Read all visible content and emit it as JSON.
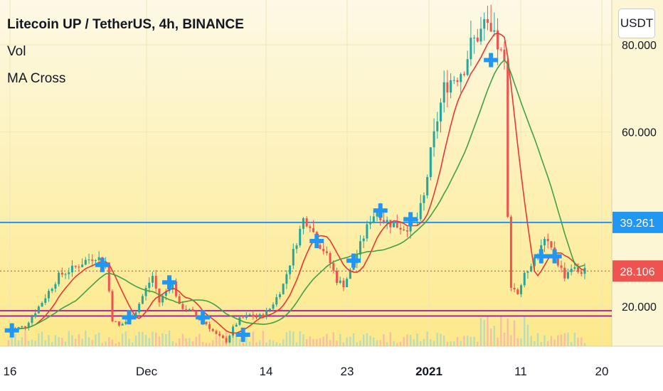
{
  "legend": {
    "title": "Litecoin UP / TetherUS, 4h, BINANCE",
    "vol": "Vol",
    "ma": "MA Cross"
  },
  "currency_button": "USDT",
  "colors": {
    "background_top": "#fdf9e6",
    "background_bottom": "#fde98a",
    "up": "#26a69a",
    "down": "#ef5350",
    "ma_fast": "#e53935",
    "ma_slow": "#43a047",
    "cross_marker": "#2196f3",
    "h_line_blue": "#2196f3",
    "h_line_purple": "#9c27b0",
    "last_price": "#ef5350"
  },
  "chart_data": {
    "type": "candlestick",
    "symbol": "Litecoin UP / TetherUS",
    "interval": "4h",
    "exchange": "BINANCE",
    "x_ticks": [
      "16",
      "Dec",
      "14",
      "23",
      "2021",
      "11",
      "20"
    ],
    "y_ticks": [
      "20.000",
      "60.000",
      "80.000"
    ],
    "ylim": [
      10,
      90
    ],
    "horizontal_lines": [
      {
        "price": 39.261,
        "label": "39.261",
        "color": "#2196f3"
      },
      {
        "price": 17.8,
        "color": "#9c27b0"
      },
      {
        "price": 19.0,
        "color": "#9c27b0"
      }
    ],
    "last_price": {
      "value": 28.106,
      "label": "28.106"
    },
    "close_path": [
      [
        0,
        14.5
      ],
      [
        5,
        15.5
      ],
      [
        10,
        21
      ],
      [
        15,
        27
      ],
      [
        20,
        29
      ],
      [
        23,
        30.5
      ],
      [
        26,
        31.5
      ],
      [
        29,
        30
      ],
      [
        31,
        17
      ],
      [
        33,
        15.5
      ],
      [
        36,
        17
      ],
      [
        38,
        19
      ],
      [
        41,
        24
      ],
      [
        43,
        27
      ],
      [
        45,
        21
      ],
      [
        47,
        23.5
      ],
      [
        49,
        25.5
      ],
      [
        51,
        20
      ],
      [
        53,
        19.5
      ],
      [
        55,
        18.5
      ],
      [
        57,
        17
      ],
      [
        59,
        16
      ],
      [
        62,
        13.5
      ],
      [
        65,
        12
      ],
      [
        67,
        15
      ],
      [
        69,
        17
      ],
      [
        72,
        18
      ],
      [
        74,
        17.5
      ],
      [
        76,
        18
      ],
      [
        78,
        19.5
      ],
      [
        80,
        22
      ],
      [
        82,
        25
      ],
      [
        84,
        30
      ],
      [
        86,
        35
      ],
      [
        88,
        40
      ],
      [
        90,
        39
      ],
      [
        92,
        35
      ],
      [
        94,
        33
      ],
      [
        96,
        30
      ],
      [
        98,
        26
      ],
      [
        100,
        25
      ],
      [
        102,
        28
      ],
      [
        104,
        32
      ],
      [
        106,
        36
      ],
      [
        108,
        40
      ],
      [
        110,
        42
      ],
      [
        112,
        40
      ],
      [
        114,
        39
      ],
      [
        116,
        38.5
      ],
      [
        118,
        38
      ],
      [
        120,
        38.5
      ],
      [
        122,
        40
      ],
      [
        124,
        45
      ],
      [
        126,
        55
      ],
      [
        128,
        63
      ],
      [
        130,
        70
      ],
      [
        132,
        72
      ],
      [
        134,
        73
      ],
      [
        136,
        75
      ],
      [
        138,
        80
      ],
      [
        140,
        82
      ],
      [
        142,
        84
      ],
      [
        144,
        82
      ],
      [
        146,
        80
      ],
      [
        148,
        75
      ],
      [
        149,
        40
      ],
      [
        150,
        25
      ],
      [
        152,
        23
      ],
      [
        154,
        27
      ],
      [
        156,
        30
      ],
      [
        158,
        32
      ],
      [
        160,
        35
      ],
      [
        162,
        33
      ],
      [
        164,
        30
      ],
      [
        166,
        27
      ],
      [
        168,
        29
      ],
      [
        170,
        28
      ],
      [
        172,
        28.1
      ]
    ],
    "cross_markers": [
      {
        "x": 1,
        "price": 14.5
      },
      {
        "x": 28,
        "price": 29.5
      },
      {
        "x": 36,
        "price": 17.5
      },
      {
        "x": 48,
        "price": 25.5
      },
      {
        "x": 58,
        "price": 17.5
      },
      {
        "x": 70,
        "price": 13.5
      },
      {
        "x": 92,
        "price": 35
      },
      {
        "x": 103,
        "price": 30.5
      },
      {
        "x": 111,
        "price": 42
      },
      {
        "x": 120,
        "price": 40
      },
      {
        "x": 144,
        "price": 76.5
      },
      {
        "x": 159,
        "price": 31.5
      },
      {
        "x": 163,
        "price": 31.5
      }
    ]
  }
}
